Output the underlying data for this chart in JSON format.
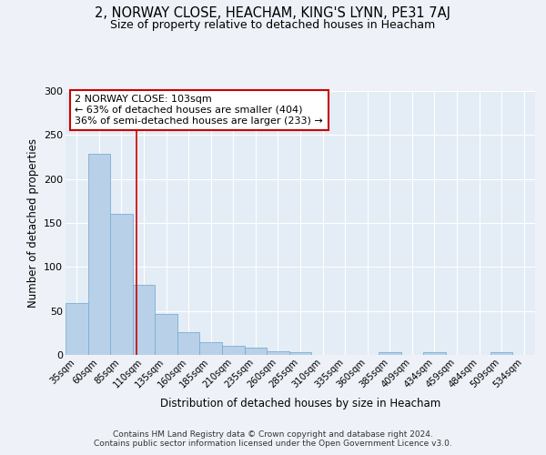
{
  "title": "2, NORWAY CLOSE, HEACHAM, KING'S LYNN, PE31 7AJ",
  "subtitle": "Size of property relative to detached houses in Heacham",
  "xlabel": "Distribution of detached houses by size in Heacham",
  "ylabel": "Number of detached properties",
  "categories": [
    "35sqm",
    "60sqm",
    "85sqm",
    "110sqm",
    "135sqm",
    "160sqm",
    "185sqm",
    "210sqm",
    "235sqm",
    "260sqm",
    "285sqm",
    "310sqm",
    "335sqm",
    "360sqm",
    "385sqm",
    "409sqm",
    "434sqm",
    "459sqm",
    "484sqm",
    "509sqm",
    "534sqm"
  ],
  "values": [
    59,
    229,
    160,
    80,
    47,
    26,
    15,
    10,
    8,
    4,
    3,
    0,
    0,
    0,
    3,
    0,
    3,
    0,
    0,
    3,
    0
  ],
  "bar_color": "#b8d0e8",
  "bar_edge_color": "#7aafd4",
  "property_line_x": 2.67,
  "annotation_text": "2 NORWAY CLOSE: 103sqm\n← 63% of detached houses are smaller (404)\n36% of semi-detached houses are larger (233) →",
  "annotation_box_color": "#ffffff",
  "annotation_box_edge_color": "#cc0000",
  "annotation_text_color": "#000000",
  "property_line_color": "#cc0000",
  "ylim": [
    0,
    300
  ],
  "yticks": [
    0,
    50,
    100,
    150,
    200,
    250,
    300
  ],
  "footer_line1": "Contains HM Land Registry data © Crown copyright and database right 2024.",
  "footer_line2": "Contains public sector information licensed under the Open Government Licence v3.0.",
  "background_color": "#eef2f8",
  "plot_bg_color": "#e4ecf5"
}
